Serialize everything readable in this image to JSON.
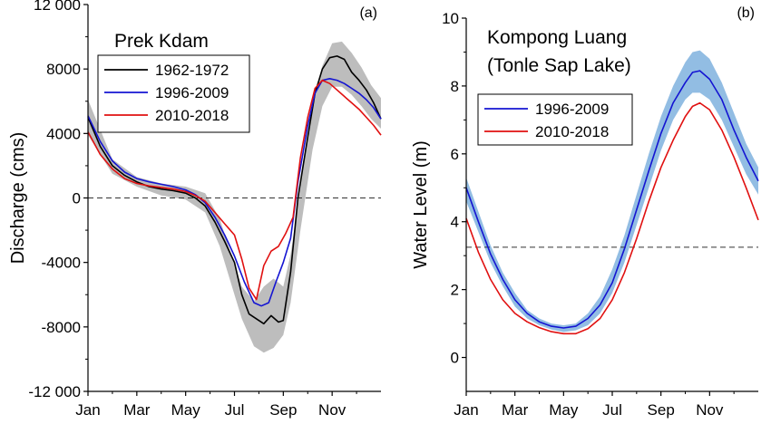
{
  "chart_data": [
    {
      "type": "line",
      "panel_label": "(a)",
      "title": "Prek Kdam",
      "xlabel": "",
      "ylabel": "Discharge (cms)",
      "xlim": [
        0,
        12
      ],
      "ylim": [
        -12000,
        12000
      ],
      "x_ticks": [
        0,
        2,
        4,
        6,
        8,
        10
      ],
      "x_tick_labels": [
        "Jan",
        "Mar",
        "May",
        "Jul",
        "Sep",
        "Nov"
      ],
      "y_ticks": [
        -12000,
        -8000,
        -4000,
        0,
        4000,
        8000,
        12000
      ],
      "y_tick_labels": [
        "-12 000",
        "-8000",
        "-4000",
        "0",
        "4000",
        "8000",
        "12 000"
      ],
      "reference_line": {
        "y": 0,
        "style": "dashed"
      },
      "band": {
        "color": "#bdbdbd",
        "x": [
          0,
          1,
          2,
          3,
          4,
          4.8,
          5.4,
          5.8,
          6.3,
          6.8,
          7.2,
          7.6,
          8,
          8.3,
          8.7,
          9.2,
          9.6,
          10,
          10.4,
          10.8,
          11.2,
          11.6,
          12
        ],
        "lower": [
          3900,
          1500,
          700,
          150,
          -100,
          -900,
          -3000,
          -5000,
          -7500,
          -9200,
          -9600,
          -9300,
          -8500,
          -6500,
          -2000,
          3000,
          5700,
          6900,
          6900,
          6400,
          5700,
          4900,
          4300
        ],
        "upper": [
          6100,
          2400,
          1300,
          900,
          700,
          300,
          -1300,
          -3200,
          -5500,
          -6400,
          -5500,
          -5000,
          -5500,
          -3500,
          700,
          6000,
          8200,
          9600,
          9700,
          9000,
          8100,
          7000,
          6200
        ]
      },
      "legend": {
        "placement": "top-left"
      },
      "series": [
        {
          "name": "1962-1972",
          "color": "#000000",
          "x": [
            0,
            0.5,
            1,
            1.5,
            2,
            2.5,
            3,
            3.5,
            4,
            4.4,
            4.8,
            5.2,
            5.6,
            6,
            6.3,
            6.6,
            6.9,
            7.2,
            7.5,
            7.8,
            8,
            8.3,
            8.6,
            9,
            9.3,
            9.6,
            9.9,
            10.2,
            10.5,
            10.8,
            11.1,
            11.4,
            11.7,
            12
          ],
          "y": [
            5000,
            3200,
            2000,
            1400,
            1000,
            700,
            550,
            450,
            300,
            0,
            -500,
            -1500,
            -2700,
            -4000,
            -6000,
            -7200,
            -7500,
            -7800,
            -7300,
            -7700,
            -7600,
            -4600,
            0,
            3800,
            6500,
            8000,
            8700,
            8800,
            8600,
            7800,
            7300,
            6700,
            5900,
            4900
          ]
        },
        {
          "name": "1996-2009",
          "color": "#1414d2",
          "x": [
            0,
            0.5,
            1,
            1.5,
            2,
            2.5,
            3,
            3.5,
            4,
            4.4,
            4.8,
            5.2,
            5.6,
            6,
            6.4,
            6.8,
            7.1,
            7.4,
            7.7,
            8,
            8.3,
            8.6,
            9,
            9.3,
            9.6,
            9.9,
            10.2,
            10.5,
            10.8,
            11.1,
            11.4,
            11.7,
            12
          ],
          "y": [
            5100,
            3500,
            2300,
            1600,
            1200,
            1000,
            850,
            700,
            500,
            200,
            -300,
            -1200,
            -2300,
            -3600,
            -5200,
            -6500,
            -6700,
            -6500,
            -5200,
            -4000,
            -2500,
            1000,
            4500,
            6500,
            7300,
            7400,
            7300,
            7100,
            6800,
            6500,
            6100,
            5600,
            4900
          ]
        },
        {
          "name": "2010-2018",
          "color": "#e01010",
          "x": [
            0,
            0.5,
            1,
            1.5,
            2,
            2.5,
            3,
            3.5,
            4,
            4.4,
            4.8,
            5.2,
            5.6,
            6,
            6.3,
            6.6,
            6.9,
            7.2,
            7.5,
            7.8,
            8.1,
            8.4,
            8.7,
            9,
            9.3,
            9.6,
            9.9,
            10.2,
            10.5,
            10.8,
            11.1,
            11.4,
            11.7,
            12
          ],
          "y": [
            4100,
            2700,
            1800,
            1200,
            900,
            750,
            650,
            550,
            400,
            150,
            -200,
            -900,
            -1600,
            -2300,
            -3800,
            -5600,
            -6300,
            -4200,
            -3300,
            -3000,
            -2200,
            -1200,
            2500,
            5000,
            6800,
            7300,
            7100,
            6700,
            6300,
            5900,
            5500,
            5000,
            4500,
            3900
          ]
        }
      ]
    },
    {
      "type": "line",
      "panel_label": "(b)",
      "title_lines": [
        "Kompong Luang",
        "(Tonle Sap Lake)"
      ],
      "xlabel": "",
      "ylabel": "Water Level (m)",
      "xlim": [
        0,
        12
      ],
      "ylim": [
        -1,
        10
      ],
      "x_ticks": [
        0,
        2,
        4,
        6,
        8,
        10
      ],
      "x_tick_labels": [
        "Jan",
        "Mar",
        "May",
        "Jul",
        "Sep",
        "Nov"
      ],
      "y_ticks": [
        0,
        2,
        4,
        6,
        8,
        10
      ],
      "y_tick_labels": [
        "0",
        "2",
        "4",
        "6",
        "8",
        "10"
      ],
      "reference_line": {
        "y": 3.25,
        "style": "dashed"
      },
      "band": {
        "color": "#92bde3",
        "x": [
          0,
          0.5,
          1,
          1.5,
          2,
          2.5,
          3,
          3.5,
          4,
          4.5,
          5,
          5.5,
          6,
          6.5,
          7,
          7.5,
          8,
          8.5,
          9,
          9.3,
          9.6,
          10,
          10.5,
          11,
          11.5,
          12
        ],
        "lower": [
          4.6,
          3.7,
          2.8,
          2.1,
          1.5,
          1.15,
          0.95,
          0.82,
          0.75,
          0.8,
          0.95,
          1.3,
          1.9,
          2.8,
          3.9,
          5.0,
          6.1,
          7.0,
          7.6,
          7.8,
          7.8,
          7.6,
          7.0,
          6.2,
          5.4,
          4.8
        ],
        "upper": [
          5.3,
          4.3,
          3.3,
          2.5,
          1.9,
          1.4,
          1.15,
          1.0,
          0.95,
          1.0,
          1.3,
          1.8,
          2.6,
          3.6,
          4.8,
          6.0,
          7.1,
          8.0,
          8.7,
          9.0,
          9.05,
          8.8,
          8.1,
          7.2,
          6.3,
          5.6
        ]
      },
      "legend": {
        "placement": "top-left"
      },
      "series": [
        {
          "name": "1996-2009",
          "color": "#1414d2",
          "x": [
            0,
            0.5,
            1,
            1.5,
            2,
            2.5,
            3,
            3.5,
            4,
            4.5,
            5,
            5.5,
            6,
            6.5,
            7,
            7.5,
            8,
            8.5,
            9,
            9.3,
            9.6,
            10,
            10.5,
            11,
            11.5,
            12
          ],
          "y": [
            5.0,
            4.0,
            3.05,
            2.3,
            1.7,
            1.3,
            1.05,
            0.92,
            0.87,
            0.92,
            1.15,
            1.55,
            2.2,
            3.2,
            4.35,
            5.5,
            6.6,
            7.5,
            8.1,
            8.4,
            8.45,
            8.2,
            7.6,
            6.7,
            5.9,
            5.2
          ]
        },
        {
          "name": "2010-2018",
          "color": "#e01010",
          "x": [
            0,
            0.5,
            1,
            1.5,
            2,
            2.5,
            3,
            3.5,
            4,
            4.5,
            5,
            5.5,
            6,
            6.5,
            7,
            7.5,
            8,
            8.5,
            9,
            9.3,
            9.6,
            10,
            10.5,
            11,
            11.5,
            12
          ],
          "y": [
            4.1,
            3.1,
            2.3,
            1.7,
            1.3,
            1.05,
            0.88,
            0.76,
            0.7,
            0.7,
            0.85,
            1.15,
            1.7,
            2.5,
            3.5,
            4.6,
            5.6,
            6.4,
            7.1,
            7.4,
            7.5,
            7.3,
            6.7,
            5.9,
            5.0,
            4.05
          ]
        }
      ]
    }
  ]
}
